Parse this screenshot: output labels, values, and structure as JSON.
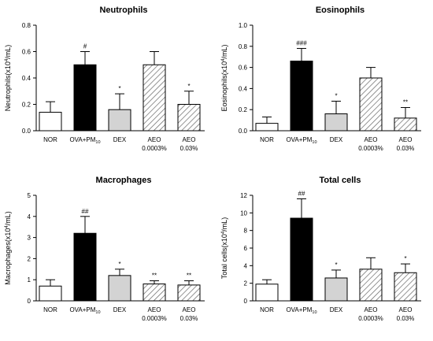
{
  "chart_data": [
    {
      "type": "bar",
      "title": "Neutrophils",
      "ylabel_main": "Neutrophils(x10",
      "ylabel_sup": "4",
      "ylabel_tail": "/mL)",
      "ylim": [
        0,
        0.8
      ],
      "yticks": [
        "0.0",
        "0.2",
        "0.4",
        "0.6",
        "0.8"
      ],
      "categories": [
        {
          "line1": "NOR",
          "line2": ""
        },
        {
          "line1": "OVA+PM",
          "sub": "10",
          "line2": ""
        },
        {
          "line1": "DEX",
          "line2": ""
        },
        {
          "line1": "AEO",
          "line2": "0.0003%"
        },
        {
          "line1": "AEO",
          "line2": "0.03%"
        }
      ],
      "values": [
        0.14,
        0.5,
        0.16,
        0.5,
        0.2
      ],
      "errors": [
        0.08,
        0.1,
        0.12,
        0.1,
        0.1
      ],
      "significance": [
        "",
        "#",
        "*",
        "",
        "*"
      ]
    },
    {
      "type": "bar",
      "title": "Eosinophils",
      "ylabel_main": "Eosinophils(x10",
      "ylabel_sup": "4",
      "ylabel_tail": "/mL)",
      "ylim": [
        0,
        1.0
      ],
      "yticks": [
        "0.0",
        "0.2",
        "0.4",
        "0.6",
        "0.8",
        "1.0"
      ],
      "categories": [
        {
          "line1": "NOR",
          "line2": ""
        },
        {
          "line1": "OVA+PM",
          "sub": "10",
          "line2": ""
        },
        {
          "line1": "DEX",
          "line2": ""
        },
        {
          "line1": "AEO",
          "line2": "0.0003%"
        },
        {
          "line1": "AEO",
          "line2": "0.03%"
        }
      ],
      "values": [
        0.07,
        0.66,
        0.16,
        0.5,
        0.12
      ],
      "errors": [
        0.06,
        0.12,
        0.12,
        0.1,
        0.1
      ],
      "significance": [
        "",
        "###",
        "*",
        "",
        "**"
      ]
    },
    {
      "type": "bar",
      "title": "Macrophages",
      "ylabel_main": "Macrophages(x10",
      "ylabel_sup": "4",
      "ylabel_tail": "/mL)",
      "ylim": [
        0,
        5
      ],
      "yticks": [
        "0",
        "1",
        "2",
        "3",
        "4",
        "5"
      ],
      "categories": [
        {
          "line1": "NOR",
          "line2": ""
        },
        {
          "line1": "OVA+PM",
          "sub": "10",
          "line2": ""
        },
        {
          "line1": "DEX",
          "line2": ""
        },
        {
          "line1": "AEO",
          "line2": "0.0003%"
        },
        {
          "line1": "AEO",
          "line2": "0.03%"
        }
      ],
      "values": [
        0.7,
        3.2,
        1.2,
        0.8,
        0.75
      ],
      "errors": [
        0.3,
        0.8,
        0.3,
        0.15,
        0.2
      ],
      "significance": [
        "",
        "##",
        "*",
        "**",
        "**"
      ]
    },
    {
      "type": "bar",
      "title": "Total cells",
      "ylabel_main": "Total cells(x10",
      "ylabel_sup": "4",
      "ylabel_tail": "/mL)",
      "ylim": [
        0,
        12
      ],
      "yticks": [
        "0",
        "2",
        "4",
        "6",
        "8",
        "10",
        "12"
      ],
      "categories": [
        {
          "line1": "NOR",
          "line2": ""
        },
        {
          "line1": "OVA+PM",
          "sub": "10",
          "line2": ""
        },
        {
          "line1": "DEX",
          "line2": ""
        },
        {
          "line1": "AEO",
          "line2": "0.0003%"
        },
        {
          "line1": "AEO",
          "line2": "0.03%"
        }
      ],
      "values": [
        1.9,
        9.4,
        2.6,
        3.6,
        3.2
      ],
      "errors": [
        0.5,
        2.2,
        0.9,
        1.3,
        1.0
      ],
      "significance": [
        "",
        "##",
        "*",
        "",
        "*"
      ]
    }
  ],
  "styles": {
    "fills": [
      "#ffffff",
      "#000000",
      "#d3d3d3",
      "hatch",
      "hatch"
    ],
    "axis_color": "#000000",
    "hatch_color": "#666666"
  }
}
